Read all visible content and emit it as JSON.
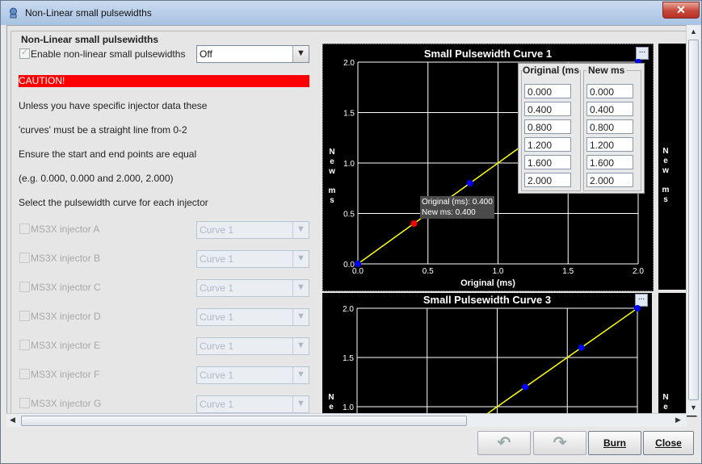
{
  "window": {
    "title": "Non-Linear small pulsewidths"
  },
  "group": {
    "label": "Non-Linear small pulsewidths"
  },
  "enable": {
    "label": "Enable non-linear small pulsewidths",
    "value": "Off"
  },
  "caution": "CAUTION!",
  "notes": [
    "Unless you have specific injector data these",
    "'curves' must be a straight line from 0-2",
    "Ensure the start and end points are equal",
    "(e.g. 0.000, 0.000 and 2.000, 2.000)",
    "Select the pulsewidth curve for each injector"
  ],
  "injectors": [
    {
      "label": "MS3X injector A",
      "value": "Curve 1"
    },
    {
      "label": "MS3X injector B",
      "value": "Curve 1"
    },
    {
      "label": "MS3X injector C",
      "value": "Curve 1"
    },
    {
      "label": "MS3X injector D",
      "value": "Curve 1"
    },
    {
      "label": "MS3X injector E",
      "value": "Curve 1"
    },
    {
      "label": "MS3X injector F",
      "value": "Curve 1"
    },
    {
      "label": "MS3X injector G",
      "value": "Curve 1"
    }
  ],
  "chart1": {
    "title": "Small Pulsewidth Curve 1",
    "menu": "...",
    "ylabel_lines": [
      "N",
      "e",
      "w",
      "",
      "m",
      "s"
    ],
    "xlabel": "Original (ms)",
    "xticks": [
      "0.0",
      "0.5",
      "1.0",
      "1.5",
      "2.0"
    ],
    "yticks": [
      "0.0",
      "0.5",
      "1.0",
      "1.5",
      "2.0"
    ],
    "tooltip": {
      "line1": "Original (ms): 0.400",
      "line2": "New ms: 0.400"
    },
    "table": {
      "col1": "Original (ms",
      "col2": "New ms",
      "rows": [
        [
          "0.000",
          "0.000"
        ],
        [
          "0.400",
          "0.400"
        ],
        [
          "0.800",
          "0.800"
        ],
        [
          "1.200",
          "1.200"
        ],
        [
          "1.600",
          "1.600"
        ],
        [
          "2.000",
          "2.000"
        ]
      ]
    }
  },
  "chart3": {
    "title": "Small Pulsewidth Curve 3",
    "menu": "...",
    "ylabel_lines": [
      "N",
      "e"
    ],
    "yticks": [
      "1.0",
      "1.5",
      "2.0"
    ]
  },
  "chart2partial": {
    "ylabel_lines": [
      "N",
      "e",
      "w",
      "",
      "m",
      "s"
    ],
    "ylabel3": [
      "N",
      "e"
    ]
  },
  "buttons": {
    "burn": "Burn",
    "close": "Close"
  },
  "colors": {
    "background": "#000000",
    "grid": "#ffffff",
    "curve": "#ffff00",
    "point": "#0000ff",
    "selected_point": "#ff0000",
    "caution": "#ff0000"
  }
}
